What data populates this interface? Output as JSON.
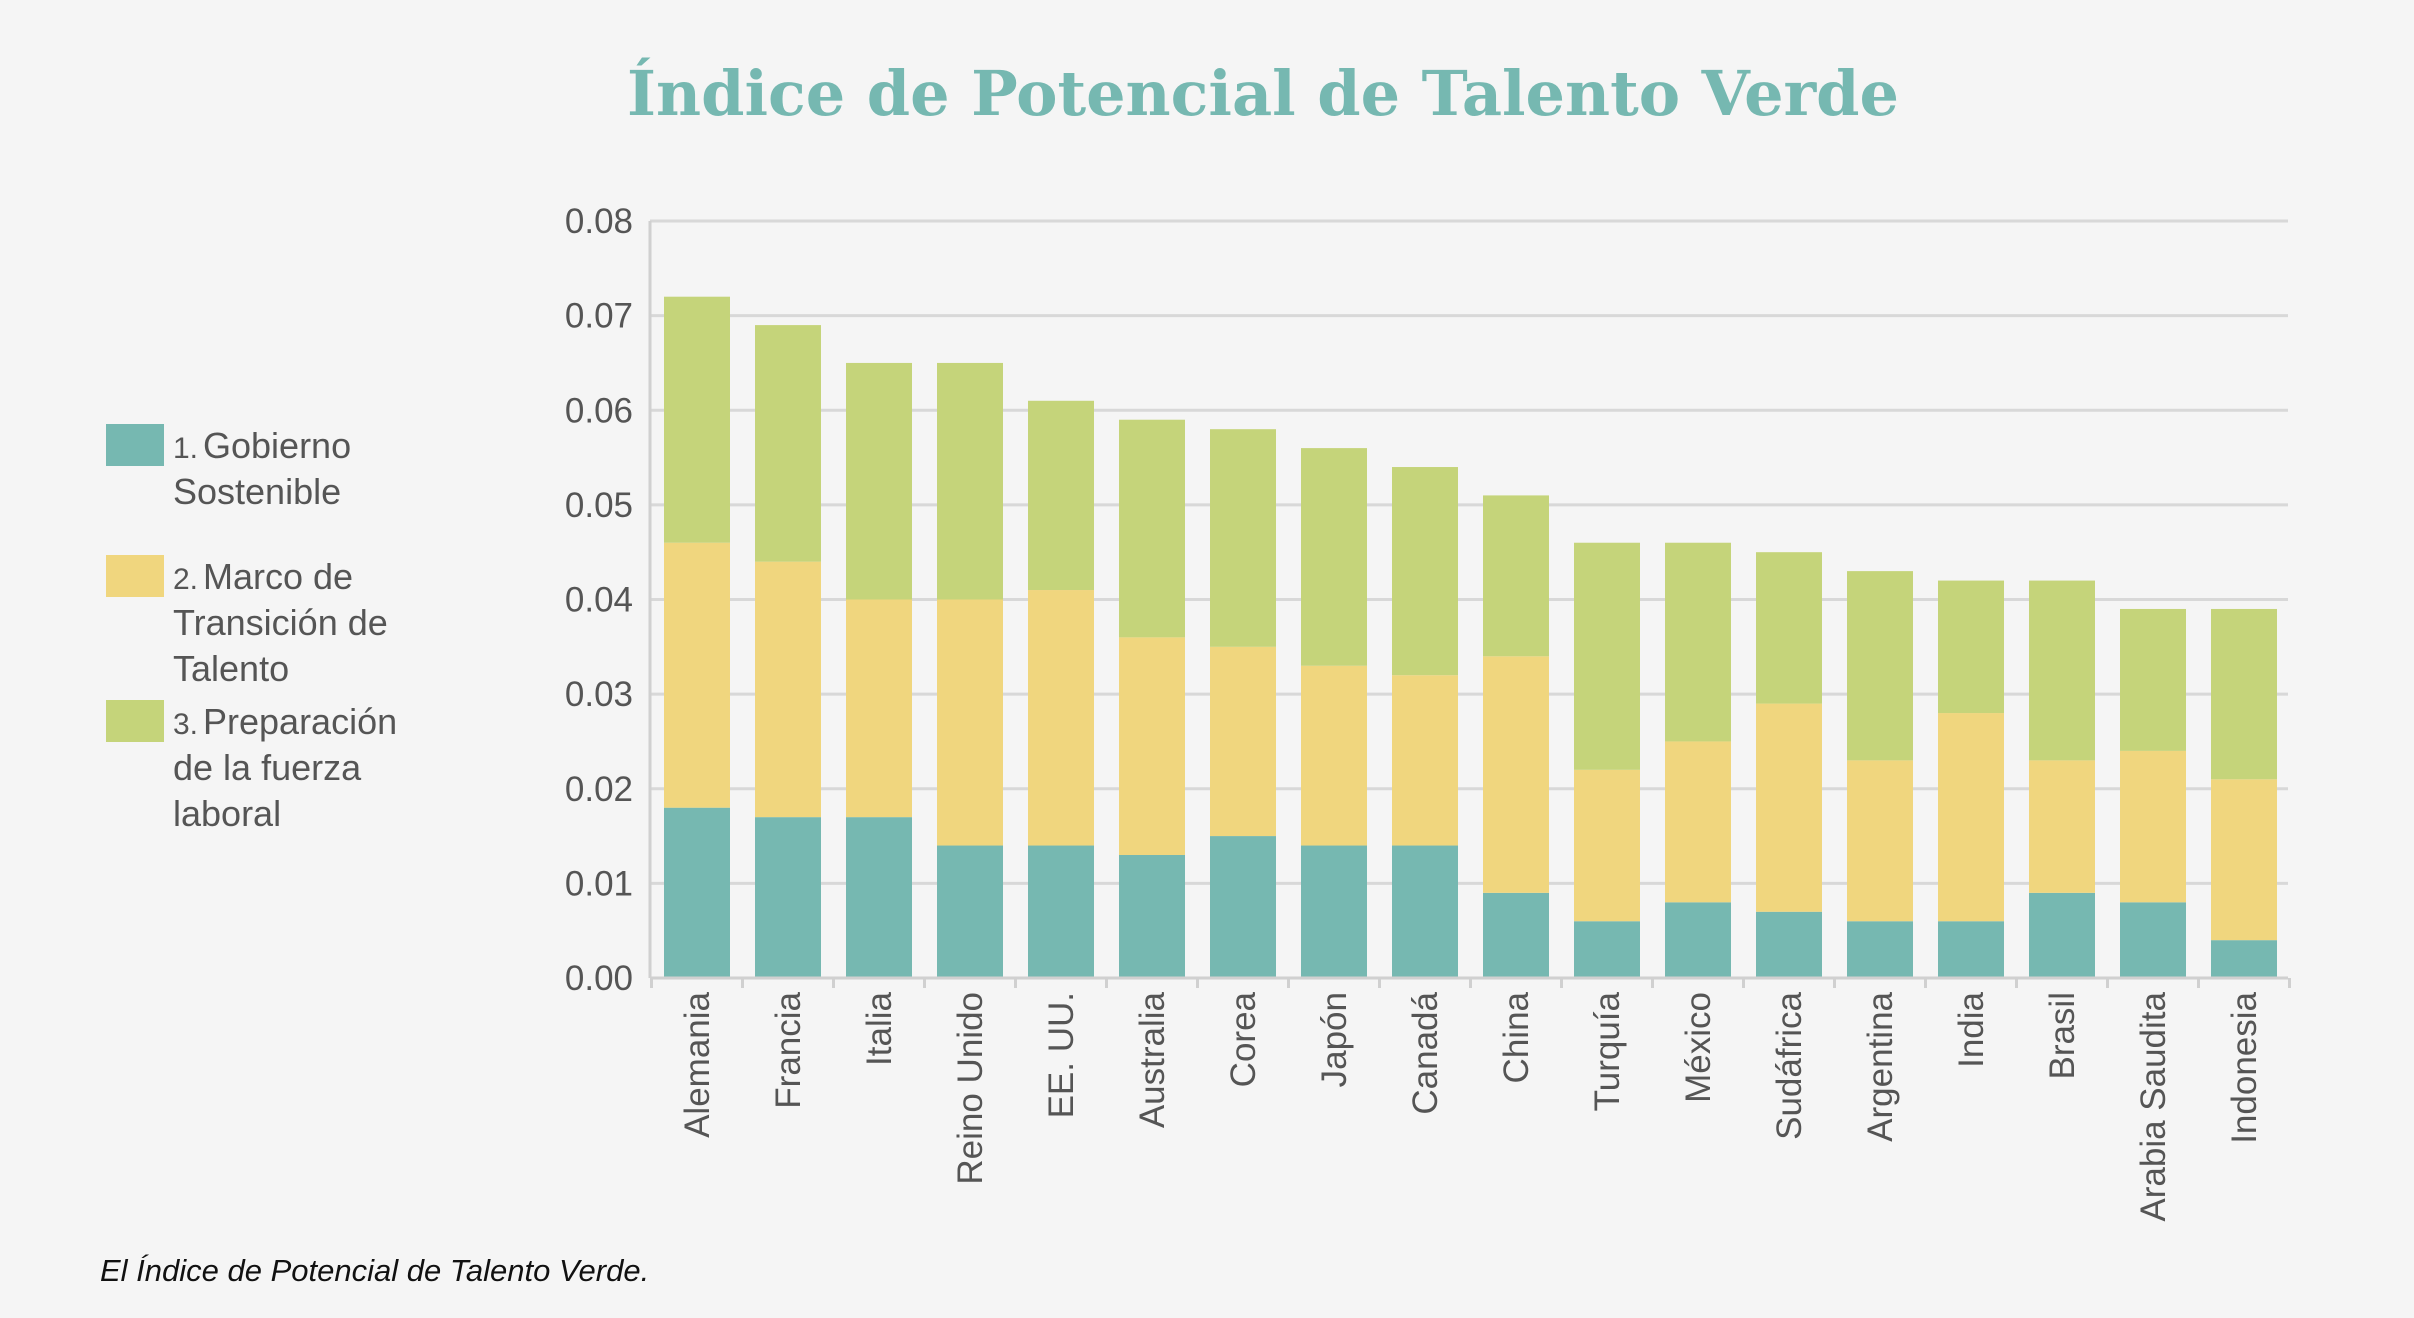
{
  "chart_data": {
    "type": "bar",
    "stacked": true,
    "title": "Índice de Potencial de Talento Verde",
    "xlabel": "",
    "ylabel": "",
    "ylim": [
      0,
      0.08
    ],
    "yticks": [
      "0.00",
      "0.01",
      "0.02",
      "0.03",
      "0.04",
      "0.05",
      "0.06",
      "0.07",
      "0.08"
    ],
    "categories": [
      "Alemania",
      "Francia",
      "Italia",
      "Reino Unido",
      "EE. UU.",
      "Australia",
      "Corea",
      "Japón",
      "Canadá",
      "China",
      "Turquía",
      "México",
      "Sudáfrica",
      "Argentina",
      "India",
      "Brasil",
      "Arabia Saudita",
      "Indonesia"
    ],
    "series": [
      {
        "name": "Gobierno Sostenible",
        "number": "1.",
        "label_lines": [
          "Gobierno",
          "Sostenible"
        ],
        "color": "#76b8b1",
        "values": [
          0.018,
          0.017,
          0.017,
          0.014,
          0.014,
          0.013,
          0.015,
          0.014,
          0.014,
          0.009,
          0.006,
          0.008,
          0.007,
          0.006,
          0.006,
          0.009,
          0.008,
          0.004
        ]
      },
      {
        "name": "Marco de Transición de Talento",
        "number": "2.",
        "label_lines": [
          "Marco de",
          "Transición de",
          "Talento"
        ],
        "color": "#f0d67e",
        "values": [
          0.028,
          0.027,
          0.023,
          0.026,
          0.027,
          0.023,
          0.02,
          0.019,
          0.018,
          0.025,
          0.016,
          0.017,
          0.022,
          0.017,
          0.022,
          0.014,
          0.016,
          0.017
        ]
      },
      {
        "name": "Preparación de la fuerza laboral",
        "number": "3.",
        "label_lines": [
          "Preparación",
          "de la fuerza",
          "laboral"
        ],
        "color": "#c5d47a",
        "values": [
          0.026,
          0.025,
          0.025,
          0.025,
          0.02,
          0.023,
          0.023,
          0.023,
          0.022,
          0.017,
          0.024,
          0.021,
          0.016,
          0.02,
          0.014,
          0.019,
          0.015,
          0.018
        ]
      }
    ],
    "legend_position": "left",
    "grid": true
  },
  "caption": "El Índice de Potencial de Talento Verde."
}
